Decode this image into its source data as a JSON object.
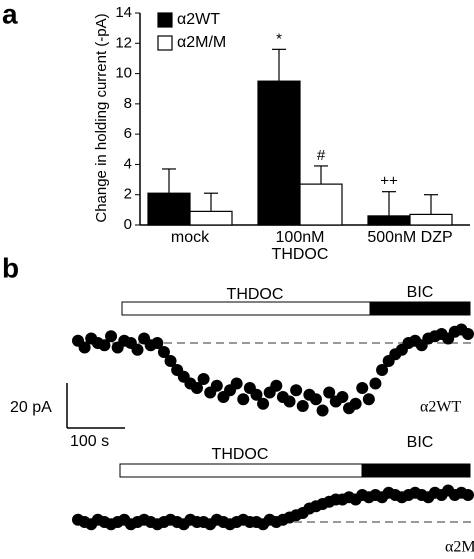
{
  "chart_data": [
    {
      "type": "bar",
      "panel": "a",
      "ylabel": "Change in holding current (-pA)",
      "categories": [
        "mock",
        "100nM THDOC",
        "500nM DZP"
      ],
      "series": [
        {
          "name": "α2WT",
          "color": "#000000",
          "values": [
            2.1,
            9.5,
            0.6
          ],
          "errors": [
            1.6,
            2.1,
            1.6
          ],
          "annotations": [
            null,
            "*",
            "++"
          ]
        },
        {
          "name": "α2M/M",
          "color": "#ffffff",
          "values": [
            0.9,
            2.7,
            0.7
          ],
          "errors": [
            1.2,
            1.2,
            1.3
          ],
          "annotations": [
            null,
            "#",
            null
          ]
        }
      ],
      "ylim": [
        0,
        14
      ],
      "yticks": [
        0,
        2,
        4,
        6,
        8,
        10,
        12,
        14
      ]
    },
    {
      "type": "trace",
      "panel": "b",
      "scale_bar": {
        "y": {
          "value": 20,
          "label": "20 pA"
        },
        "x": {
          "value": 100,
          "label": "100 s"
        }
      },
      "drugs": [
        "THDOC",
        "BIC"
      ],
      "series": [
        {
          "name": "α2WT",
          "color": "#000000",
          "values": [
            1,
            -2,
            2,
            0,
            -1,
            3,
            -2,
            1,
            0,
            -3,
            2,
            -1,
            0,
            -4,
            -8,
            -12,
            -15,
            -18,
            -20,
            -16,
            -22,
            -19,
            -24,
            -21,
            -18,
            -25,
            -20,
            -23,
            -27,
            -22,
            -19,
            -24,
            -26,
            -21,
            -28,
            -23,
            -25,
            -30,
            -22,
            -26,
            -24,
            -29,
            -27,
            -20,
            -25,
            -18,
            -12,
            -8,
            -5,
            -3,
            0,
            1,
            -1,
            2,
            3,
            4,
            2,
            5,
            6,
            4
          ]
        },
        {
          "name": "α2M/M",
          "color": "#000000",
          "values": [
            1,
            0,
            -1,
            1,
            0,
            -1,
            0,
            1,
            -1,
            0,
            1,
            0,
            -1,
            0,
            1,
            0,
            -1,
            1,
            0,
            0,
            -1,
            1,
            0,
            -1,
            0,
            1,
            0,
            0,
            -1,
            1,
            0,
            1,
            2,
            3,
            4,
            6,
            7,
            8,
            9,
            10,
            10,
            11,
            10,
            12,
            11,
            12,
            11,
            13,
            12,
            11,
            12,
            13,
            12,
            11,
            13,
            12,
            14,
            12,
            13,
            12
          ]
        }
      ]
    }
  ]
}
